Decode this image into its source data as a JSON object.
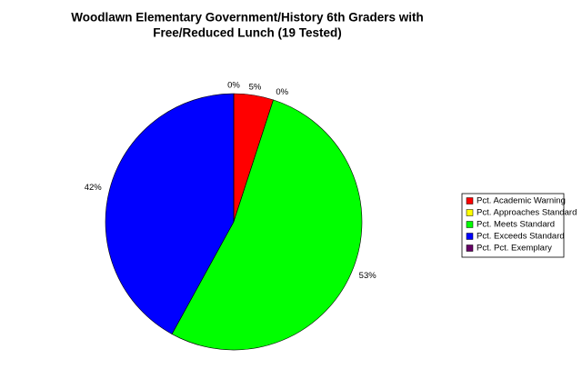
{
  "chart_data": {
    "type": "pie",
    "title": [
      "Woodlawn Elementary Government/History 6th Graders with",
      "Free/Reduced Lunch (19 Tested)"
    ],
    "categories": [
      "Pct. Academic Warning",
      "Pct. Approaches Standard",
      "Pct. Meets Standard",
      "Pct. Exceeds Standard",
      "Pct. Pct. Exemplary"
    ],
    "values": [
      5,
      0,
      53,
      42,
      0
    ],
    "value_labels": [
      "5%",
      "0%",
      "53%",
      "42%",
      "0%"
    ],
    "colors": [
      "#ff0000",
      "#ffff00",
      "#00ff00",
      "#0000ff",
      "#660066"
    ]
  }
}
